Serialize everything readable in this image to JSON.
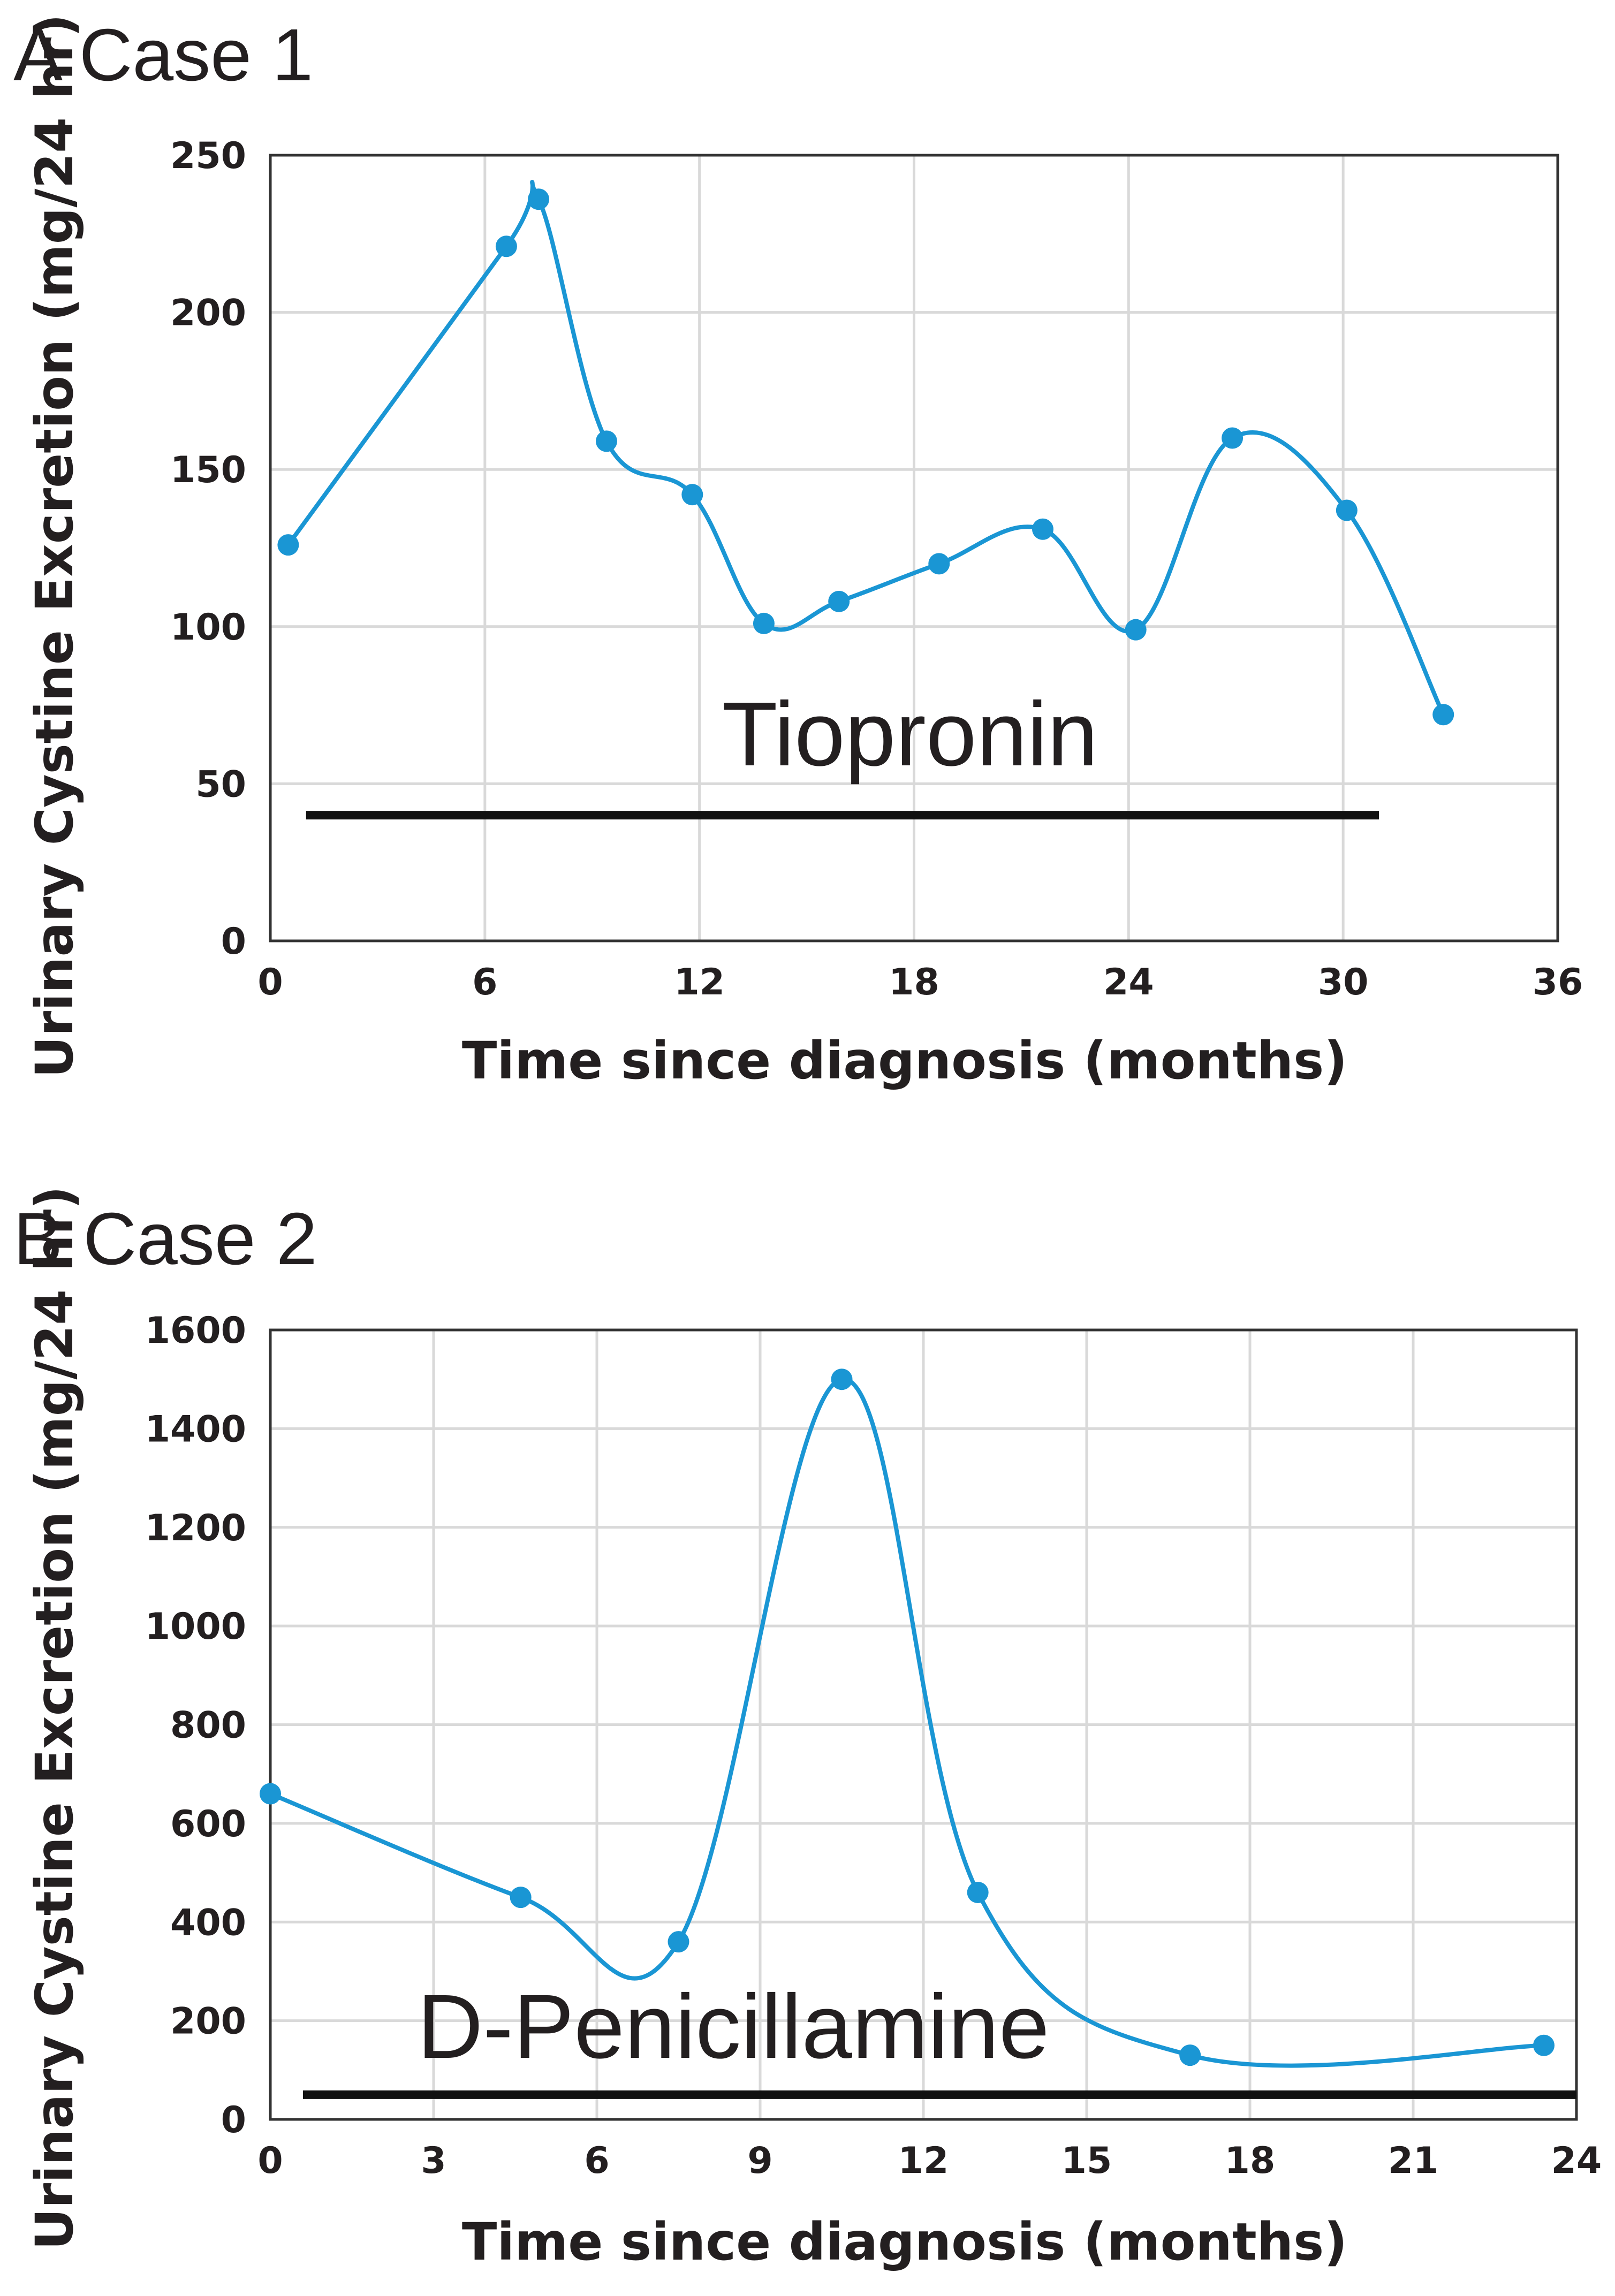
{
  "colors": {
    "series": "#1a96d4",
    "bar": "#111111",
    "grid": "#d9d9d9",
    "text": "#231f20"
  },
  "chart_data": [
    {
      "type": "line",
      "panel_label": "A Case 1",
      "xlabel": "Time since diagnosis (months)",
      "ylabel": "Urinary Cystine Excretion (mg/24 hr)",
      "xlim": [
        0,
        36
      ],
      "ylim": [
        0,
        250
      ],
      "xticks": [
        "0",
        "6",
        "12",
        "18",
        "24",
        "30",
        "36"
      ],
      "yticks": [
        "0",
        "50",
        "100",
        "150",
        "200",
        "250"
      ],
      "xtick_values": [
        0,
        6,
        12,
        18,
        24,
        30,
        36
      ],
      "ytick_values": [
        0,
        50,
        100,
        150,
        200,
        250
      ],
      "series": [
        {
          "name": "Urinary cystine excretion",
          "x": [
            0.5,
            6.6,
            7.5,
            9.4,
            11.8,
            13.8,
            15.9,
            18.7,
            21.6,
            24.2,
            26.9,
            30.1,
            32.8
          ],
          "y": [
            126,
            221,
            236,
            159,
            142,
            101,
            108,
            120,
            131,
            99,
            160,
            137,
            72
          ]
        }
      ],
      "treatment": {
        "label": "Tiopronin",
        "start": 1.0,
        "end": 31.0,
        "level": 40
      }
    },
    {
      "type": "line",
      "panel_label": "B Case 2",
      "xlabel": "Time since diagnosis (months)",
      "ylabel": "Urinary Cystine Excretion (mg/24 hr)",
      "xlim": [
        0,
        24
      ],
      "ylim": [
        0,
        1600
      ],
      "xticks": [
        "0",
        "3",
        "6",
        "9",
        "12",
        "15",
        "18",
        "21",
        "24"
      ],
      "yticks": [
        "0",
        "200",
        "400",
        "600",
        "800",
        "1000",
        "1200",
        "1400",
        "1600"
      ],
      "xtick_values": [
        0,
        3,
        6,
        9,
        12,
        15,
        18,
        21,
        24
      ],
      "ytick_values": [
        0,
        200,
        400,
        600,
        800,
        1000,
        1200,
        1400,
        1600
      ],
      "series": [
        {
          "name": "Urinary cystine excretion",
          "x": [
            0,
            4.6,
            7.5,
            10.5,
            13.0,
            16.9,
            23.4
          ],
          "y": [
            660,
            450,
            360,
            1500,
            460,
            130,
            150
          ]
        }
      ],
      "treatment": {
        "label": "D-Penicillamine",
        "start": 0.6,
        "end": 24.0,
        "level": 50
      }
    }
  ]
}
